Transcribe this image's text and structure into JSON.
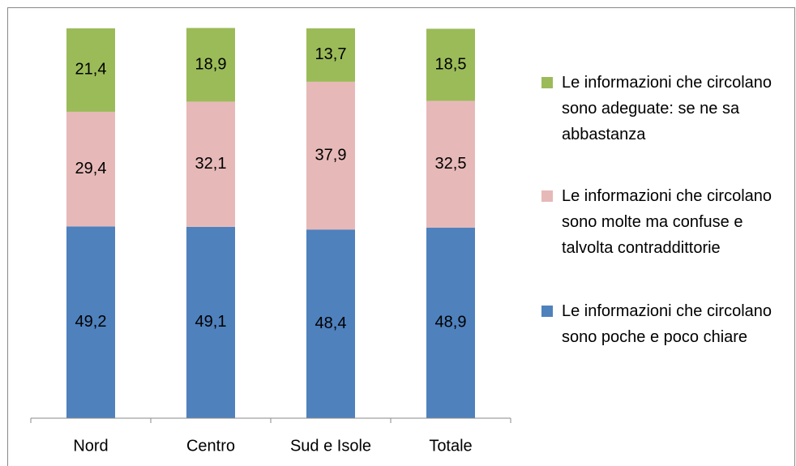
{
  "chart_data": {
    "type": "stacked_bar",
    "categories": [
      "Nord",
      "Centro",
      "Sud e Isole",
      "Totale"
    ],
    "series": [
      {
        "name": "Le informazioni che circolano sono poche e poco chiare",
        "color": "#4f81bd",
        "values": [
          49.2,
          49.1,
          48.4,
          48.9
        ],
        "value_labels": [
          "49,2",
          "49,1",
          "48,4",
          "48,9"
        ]
      },
      {
        "name": "Le informazioni che circolano sono molte ma confuse e talvolta contraddittorie",
        "color": "#e6b9b8",
        "values": [
          29.4,
          32.1,
          37.9,
          32.5
        ],
        "value_labels": [
          "29,4",
          "32,1",
          "37,9",
          "32,5"
        ]
      },
      {
        "name": "Le informazioni che circolano sono adeguate: se ne sa abbastanza",
        "color": "#9bbb59",
        "values": [
          21.4,
          18.9,
          13.7,
          18.5
        ],
        "value_labels": [
          "21,4",
          "18,9",
          "13,7",
          "18,5"
        ]
      }
    ],
    "ylim": [
      0,
      100
    ],
    "legend": "right"
  }
}
